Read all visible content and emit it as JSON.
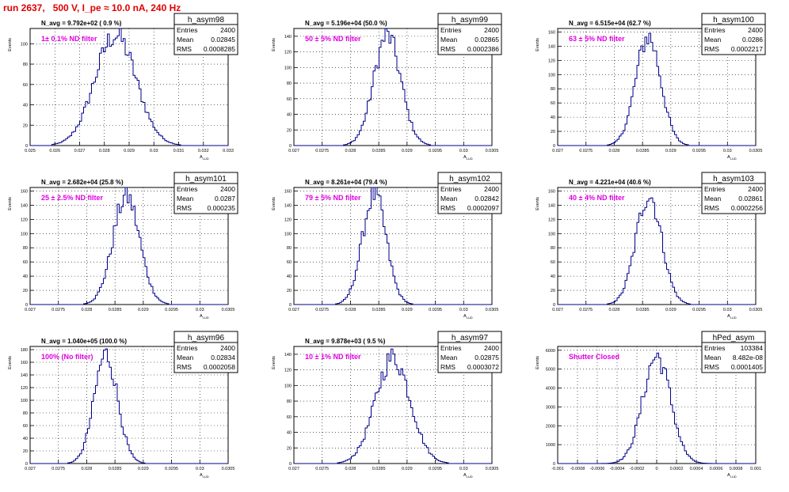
{
  "header": {
    "title": "run 2637,   500 V, I_pe ≈ 10.0 nA, 240 Hz"
  },
  "axis_labels": {
    "x": "A_{LUD}",
    "y": "Events"
  },
  "stat_labels": {
    "entries": "Entries",
    "mean": "Mean",
    "rms": "RMS"
  },
  "colors": {
    "title": "#e00000",
    "annotation": "#e000e0",
    "histogram": "#00008b"
  },
  "chart_data": [
    {
      "type": "histogram",
      "title": "h_asym98",
      "navg_text": "N_avg = 9.792e+02 ( 0.9 %)",
      "annotation": "1± 0.1% ND filter",
      "stats": {
        "entries": "2400",
        "mean": "0.02845",
        "rms": "0.0008285"
      },
      "xlim": [
        0.025,
        0.033
      ],
      "ylim": [
        0,
        115
      ],
      "xticks": [
        "0.025",
        "0.026",
        "0.027",
        "0.028",
        "0.029",
        "0.03",
        "0.031",
        "0.032",
        "0.033"
      ],
      "yticks": [
        "0",
        "20",
        "40",
        "60",
        "80",
        "100"
      ],
      "distribution": {
        "mean": 0.02845,
        "sigma": 0.0008285,
        "peak": 112,
        "bins": 100
      },
      "xlabel": "A_{LUD}",
      "ylabel": "Events",
      "grid": true,
      "legend": "top-right"
    },
    {
      "type": "histogram",
      "title": "h_asym99",
      "navg_text": "N_avg = 5.196e+04 (50.0 %)",
      "annotation": "50 ± 5% ND filter",
      "stats": {
        "entries": "2400",
        "mean": "0.02865",
        "rms": "0.0002386"
      },
      "xlim": [
        0.027,
        0.0305
      ],
      "ylim": [
        0,
        150
      ],
      "xticks": [
        "0.027",
        "0.0275",
        "0.028",
        "0.0285",
        "0.029",
        "0.0295",
        "0.03",
        "0.0305"
      ],
      "yticks": [
        "0",
        "20",
        "40",
        "60",
        "80",
        "100",
        "120",
        "140"
      ],
      "distribution": {
        "mean": 0.02865,
        "sigma": 0.0002386,
        "peak": 145,
        "bins": 100
      },
      "xlabel": "A_{LUD}",
      "ylabel": "Events",
      "grid": true,
      "legend": "top-right"
    },
    {
      "type": "histogram",
      "title": "h_asym100",
      "navg_text": "N_avg = 6.515e+04 (62.7 %)",
      "annotation": "63 ± 5% ND filter",
      "stats": {
        "entries": "2400",
        "mean": "0.0286",
        "rms": "0.0002217"
      },
      "xlim": [
        0.027,
        0.0305
      ],
      "ylim": [
        0,
        165
      ],
      "xticks": [
        "0.027",
        "0.0275",
        "0.028",
        "0.0285",
        "0.029",
        "0.0295",
        "0.03",
        "0.0305"
      ],
      "yticks": [
        "0",
        "20",
        "40",
        "60",
        "80",
        "100",
        "120",
        "140",
        "160"
      ],
      "distribution": {
        "mean": 0.0286,
        "sigma": 0.0002217,
        "peak": 158,
        "bins": 100
      },
      "xlabel": "A_{LUD}",
      "ylabel": "Events",
      "grid": true,
      "legend": "top-right"
    },
    {
      "type": "histogram",
      "title": "h_asym101",
      "navg_text": "N_avg = 2.682e+04 (25.8 %)",
      "annotation": "25 ± 2.5% ND filter",
      "stats": {
        "entries": "2400",
        "mean": "0.0287",
        "rms": "0.000235"
      },
      "xlim": [
        0.027,
        0.0305
      ],
      "ylim": [
        0,
        165
      ],
      "xticks": [
        "0.027",
        "0.0275",
        "0.028",
        "0.0285",
        "0.029",
        "0.0295",
        "0.03",
        "0.0305"
      ],
      "yticks": [
        "0",
        "20",
        "40",
        "60",
        "80",
        "100",
        "120",
        "140",
        "160"
      ],
      "distribution": {
        "mean": 0.0287,
        "sigma": 0.000235,
        "peak": 158,
        "bins": 100
      },
      "xlabel": "A_{LUD}",
      "ylabel": "Events",
      "grid": true,
      "legend": "top-right"
    },
    {
      "type": "histogram",
      "title": "h_asym102",
      "navg_text": "N_avg = 8.261e+04 (79.4 %)",
      "annotation": "79 ± 5% ND filter",
      "stats": {
        "entries": "2400",
        "mean": "0.02842",
        "rms": "0.0002097"
      },
      "xlim": [
        0.027,
        0.0305
      ],
      "ylim": [
        0,
        165
      ],
      "xticks": [
        "0.027",
        "0.0275",
        "0.028",
        "0.0285",
        "0.029",
        "0.0295",
        "0.03",
        "0.0305"
      ],
      "yticks": [
        "0",
        "20",
        "40",
        "60",
        "80",
        "100",
        "120",
        "140",
        "160"
      ],
      "distribution": {
        "mean": 0.02842,
        "sigma": 0.0002097,
        "peak": 160,
        "bins": 100
      },
      "xlabel": "A_{LUD}",
      "ylabel": "Events",
      "grid": true,
      "legend": "top-right"
    },
    {
      "type": "histogram",
      "title": "h_asym103",
      "navg_text": "N_avg = 4.221e+04 (40.6 %)",
      "annotation": "40 ± 4% ND filter",
      "stats": {
        "entries": "2400",
        "mean": "0.02861",
        "rms": "0.0002256"
      },
      "xlim": [
        0.027,
        0.0305
      ],
      "ylim": [
        0,
        165
      ],
      "xticks": [
        "0.027",
        "0.0275",
        "0.028",
        "0.0285",
        "0.029",
        "0.0295",
        "0.03",
        "0.0305"
      ],
      "yticks": [
        "0",
        "20",
        "40",
        "60",
        "80",
        "100",
        "120",
        "140",
        "160"
      ],
      "distribution": {
        "mean": 0.02861,
        "sigma": 0.0002256,
        "peak": 160,
        "bins": 100
      },
      "xlabel": "A_{LUD}",
      "ylabel": "Events",
      "grid": true,
      "legend": "top-right"
    },
    {
      "type": "histogram",
      "title": "h_asym96",
      "navg_text": "N_avg = 1.040e+05 (100.0 %)",
      "annotation": "100% (No filter)",
      "stats": {
        "entries": "2400",
        "mean": "0.02834",
        "rms": "0.0002058"
      },
      "xlim": [
        0.027,
        0.0305
      ],
      "ylim": [
        0,
        185
      ],
      "xticks": [
        "0.027",
        "0.0275",
        "0.028",
        "0.0285",
        "0.029",
        "0.0295",
        "0.03",
        "0.0305"
      ],
      "yticks": [
        "0",
        "20",
        "40",
        "60",
        "80",
        "100",
        "120",
        "140",
        "160",
        "180"
      ],
      "distribution": {
        "mean": 0.02834,
        "sigma": 0.0002058,
        "peak": 178,
        "bins": 100
      },
      "xlabel": "A_{LUD}",
      "ylabel": "Events",
      "grid": true,
      "legend": "top-right"
    },
    {
      "type": "histogram",
      "title": "h_asym97",
      "navg_text": "N_avg = 9.878e+03 ( 9.5 %)",
      "annotation": "10 ± 1% ND filter",
      "stats": {
        "entries": "2400",
        "mean": "0.02875",
        "rms": "0.0003072"
      },
      "xlim": [
        0.027,
        0.0305
      ],
      "ylim": [
        0,
        150
      ],
      "xticks": [
        "0.027",
        "0.0275",
        "0.028",
        "0.0285",
        "0.029",
        "0.0295",
        "0.03",
        "0.0305"
      ],
      "yticks": [
        "0",
        "20",
        "40",
        "60",
        "80",
        "100",
        "120",
        "140"
      ],
      "distribution": {
        "mean": 0.02875,
        "sigma": 0.0003072,
        "peak": 140,
        "bins": 100
      },
      "xlabel": "A_{LUD}",
      "ylabel": "Events",
      "grid": true,
      "legend": "top-right"
    },
    {
      "type": "histogram",
      "title": "hPed_asym",
      "navg_text": "",
      "annotation": "Shutter Closed",
      "stats": {
        "entries": "103384",
        "mean": "8.482e-08",
        "rms": "0.0001405"
      },
      "xlim": [
        -0.001,
        0.001
      ],
      "ylim": [
        0,
        6200
      ],
      "xticks": [
        "-0.001",
        "-0.0008",
        "-0.0006",
        "-0.0004",
        "-0.0002",
        "0",
        "0.0002",
        "0.0004",
        "0.0006",
        "0.0008",
        "0.001"
      ],
      "yticks": [
        "0",
        "1000",
        "2000",
        "3000",
        "4000",
        "5000",
        "6000"
      ],
      "distribution": {
        "mean": 0.0,
        "sigma": 0.0001405,
        "peak": 5850,
        "bins": 100
      },
      "xlabel": "A_{LUD}",
      "ylabel": "Events",
      "grid": true,
      "legend": "top-right"
    }
  ]
}
